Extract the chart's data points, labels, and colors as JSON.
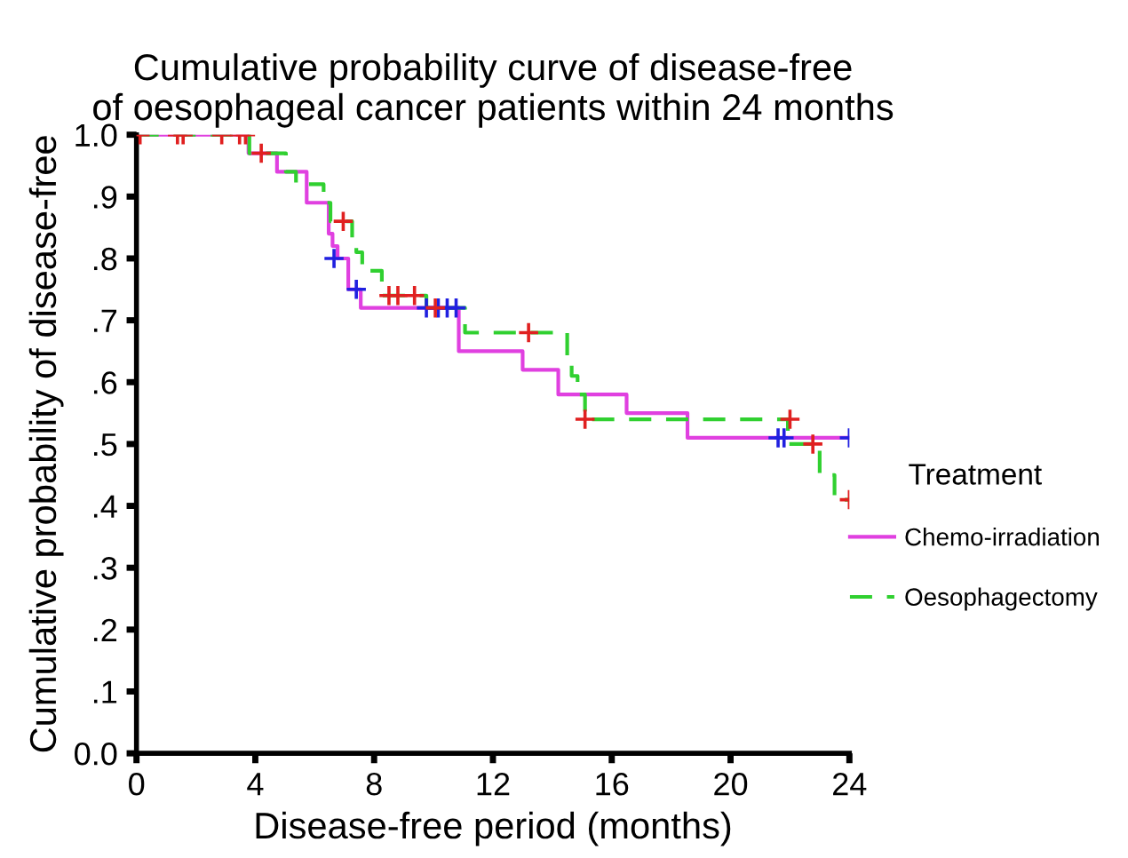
{
  "chart_data": {
    "type": "step",
    "title": "Cumulative probability curve of disease-free\nof oesophageal cancer patients within 24 months",
    "xlabel": "Disease-free period (months)",
    "ylabel": "Cumulative probability of disease-free",
    "legend_title": "Treatment",
    "series": [
      {
        "name": "Chemo-irradiation",
        "color": "#e040e0",
        "line_style": "solid",
        "x": [
          0,
          3.77,
          4.73,
          5.73,
          6.47,
          6.6,
          6.77,
          7.13,
          7.55,
          10.85,
          13.0,
          14.2,
          16.5,
          18.55,
          24.0
        ],
        "values": [
          1.0,
          0.97,
          0.94,
          0.89,
          0.84,
          0.82,
          0.8,
          0.75,
          0.72,
          0.65,
          0.62,
          0.58,
          0.55,
          0.51,
          0.51
        ]
      },
      {
        "type": "scatter",
        "marker": "cross",
        "color": "#2020e0",
        "x": [
          6.65,
          7.4,
          9.76,
          10.16,
          10.46,
          10.76,
          21.6,
          21.8,
          24.0
        ],
        "values": [
          0.8,
          0.75,
          0.72,
          0.72,
          0.72,
          0.72,
          0.51,
          0.51,
          0.51
        ]
      },
      {
        "name": "Oesophagectomy",
        "color": "#30d030",
        "line_style": "dashed",
        "x": [
          0,
          3.8,
          5.03,
          5.37,
          6.3,
          6.53,
          7.26,
          7.4,
          7.6,
          8.26,
          9.76,
          11.06,
          14.5,
          14.65,
          14.85,
          15.1,
          21.93,
          23.0,
          23.5,
          24.0
        ],
        "values": [
          1.0,
          0.97,
          0.94,
          0.92,
          0.89,
          0.86,
          0.83,
          0.81,
          0.78,
          0.74,
          0.72,
          0.68,
          0.64,
          0.61,
          0.58,
          0.54,
          0.5,
          0.45,
          0.41,
          0.41
        ]
      },
      {
        "type": "scatter",
        "marker": "cross",
        "color": "#e02020",
        "x": [
          0.12,
          1.38,
          1.57,
          2.87,
          3.47,
          3.67,
          4.2,
          6.96,
          8.5,
          8.8,
          9.36,
          10.06,
          13.2,
          15.1,
          22.0,
          22.77,
          24.0
        ],
        "values": [
          1.0,
          1.0,
          1.0,
          1.0,
          1.0,
          1.0,
          0.97,
          0.86,
          0.74,
          0.74,
          0.74,
          0.72,
          0.68,
          0.54,
          0.54,
          0.5,
          0.41
        ]
      }
    ],
    "xlim": [
      0,
      24
    ],
    "ylim": [
      0,
      1.0
    ],
    "xticks": [
      0,
      4,
      8,
      12,
      16,
      20,
      24
    ],
    "yticks": [
      {
        "value": 0,
        "label": "0.0"
      },
      {
        "value": 0.1,
        "label": ".1"
      },
      {
        "value": 0.2,
        "label": ".2"
      },
      {
        "value": 0.3,
        "label": ".3"
      },
      {
        "value": 0.4,
        "label": ".4"
      },
      {
        "value": 0.5,
        "label": ".5"
      },
      {
        "value": 0.6,
        "label": ".6"
      },
      {
        "value": 0.7,
        "label": ".7"
      },
      {
        "value": 0.8,
        "label": ".8"
      },
      {
        "value": 0.9,
        "label": ".9"
      },
      {
        "value": 1.0,
        "label": "1.0"
      }
    ],
    "grid": false,
    "legend": "right"
  }
}
